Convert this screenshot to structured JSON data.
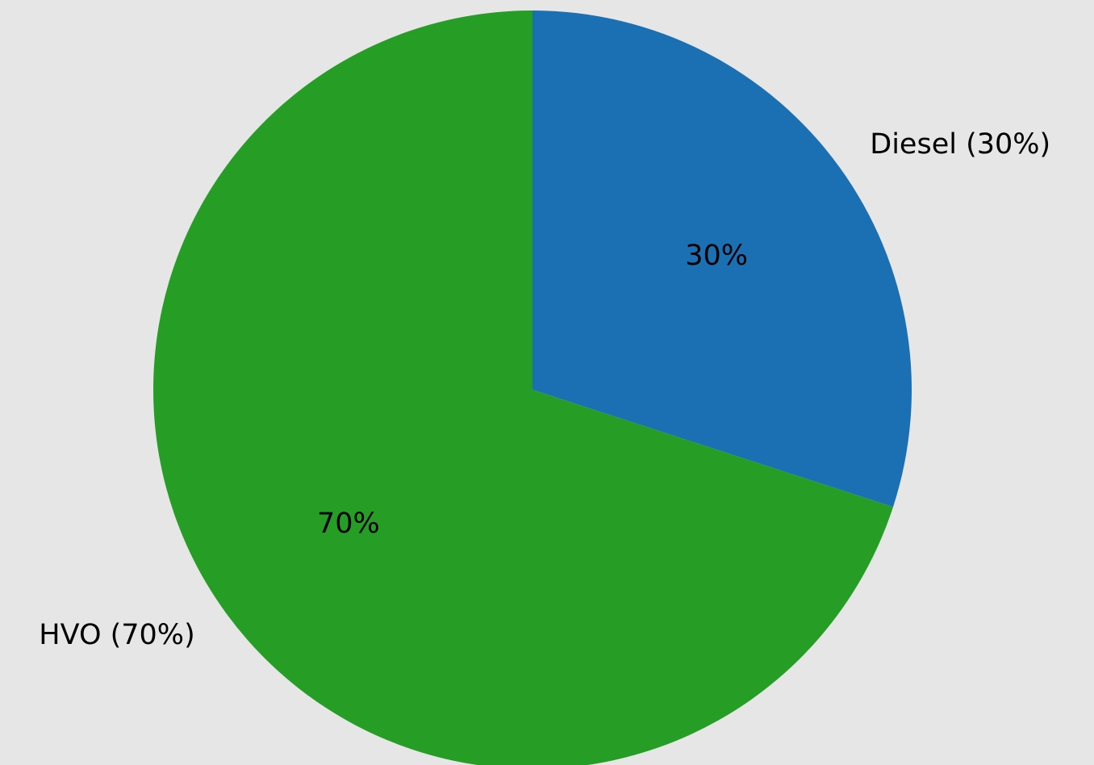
{
  "chart_data": {
    "type": "pie",
    "title": "",
    "categories": [
      "Diesel",
      "HVO"
    ],
    "values": [
      30,
      70
    ],
    "unit": "%",
    "colors": [
      "#1a70b3",
      "#269e26"
    ],
    "outer_labels": [
      "Diesel (30%)",
      "HVO (70%)"
    ],
    "inner_labels": [
      "30%",
      "70%"
    ],
    "start_angle_deg": 90,
    "direction": "clockwise",
    "background": "#e6e6e6"
  }
}
